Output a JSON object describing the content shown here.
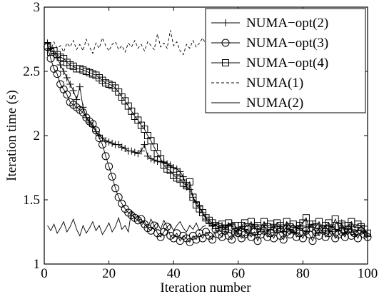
{
  "chart_data": {
    "type": "line",
    "xlabel": "Iteration number",
    "ylabel": "Iteration time (s)",
    "xlim": [
      0,
      100
    ],
    "ylim": [
      1,
      3
    ],
    "xticks": [
      "0",
      "20",
      "40",
      "60",
      "80",
      "100"
    ],
    "yticks": [
      "1",
      "1.5",
      "2",
      "2.5",
      "3"
    ],
    "grid": false,
    "legend_position": "top-right",
    "series": [
      {
        "name": "NUMA−opt(2)",
        "style": "solid",
        "marker": "plus",
        "x": [
          1,
          2,
          3,
          4,
          5,
          6,
          7,
          8,
          9,
          10,
          11,
          12,
          13,
          14,
          15,
          16,
          17,
          18,
          19,
          20,
          21,
          22,
          23,
          24,
          25,
          26,
          27,
          28,
          29,
          30,
          31,
          32,
          33,
          34,
          35,
          36,
          37,
          38,
          39,
          40,
          41,
          42,
          43,
          44,
          45,
          46,
          47,
          48,
          49,
          50,
          51,
          52,
          53,
          54,
          55,
          56,
          57,
          58,
          59,
          60,
          61,
          62,
          63,
          64,
          65,
          66,
          67,
          68,
          69,
          70,
          71,
          72,
          73,
          74,
          75,
          76,
          77,
          78,
          79,
          80,
          81,
          82,
          83,
          84,
          85,
          86,
          87,
          88,
          89,
          90,
          91,
          92,
          93,
          94,
          95,
          96,
          97,
          98,
          99,
          100
        ],
        "y": [
          2.72,
          2.68,
          2.64,
          2.61,
          2.55,
          2.5,
          2.45,
          2.4,
          2.35,
          2.28,
          2.38,
          2.22,
          2.14,
          2.1,
          2.07,
          2.03,
          2.0,
          1.98,
          1.96,
          1.95,
          1.94,
          1.93,
          1.93,
          1.91,
          1.9,
          1.88,
          1.88,
          1.87,
          1.86,
          1.88,
          1.93,
          1.84,
          1.82,
          1.81,
          1.8,
          1.8,
          1.79,
          1.78,
          1.77,
          1.75,
          1.74,
          1.72,
          1.68,
          1.6,
          1.58,
          1.52,
          1.48,
          1.45,
          1.4,
          1.35,
          1.32,
          1.3,
          1.31,
          1.28,
          1.3,
          1.27,
          1.3,
          1.31,
          1.25,
          1.26,
          1.29,
          1.27,
          1.22,
          1.28,
          1.31,
          1.23,
          1.27,
          1.3,
          1.25,
          1.27,
          1.31,
          1.26,
          1.29,
          1.25,
          1.3,
          1.27,
          1.24,
          1.28,
          1.3,
          1.26,
          1.25,
          1.29,
          1.31,
          1.24,
          1.28,
          1.26,
          1.3,
          1.25,
          1.29,
          1.27,
          1.26,
          1.32,
          1.24,
          1.27,
          1.29,
          1.23,
          1.26,
          1.3,
          1.25,
          1.22
        ]
      },
      {
        "name": "NUMA−opt(3)",
        "style": "solid",
        "marker": "circle",
        "x": [
          1,
          2,
          3,
          4,
          5,
          6,
          7,
          8,
          9,
          10,
          11,
          12,
          13,
          14,
          15,
          16,
          17,
          18,
          19,
          20,
          21,
          22,
          23,
          24,
          25,
          26,
          27,
          28,
          29,
          30,
          31,
          32,
          33,
          34,
          35,
          36,
          37,
          38,
          39,
          40,
          41,
          42,
          43,
          44,
          45,
          46,
          47,
          48,
          49,
          50,
          51,
          52,
          53,
          54,
          55,
          56,
          57,
          58,
          59,
          60,
          61,
          62,
          63,
          64,
          65,
          66,
          67,
          68,
          69,
          70,
          71,
          72,
          73,
          74,
          75,
          76,
          77,
          78,
          79,
          80,
          81,
          82,
          83,
          84,
          85,
          86,
          87,
          88,
          89,
          90,
          91,
          92,
          93,
          94,
          95,
          96,
          97,
          98,
          99,
          100
        ],
        "y": [
          2.69,
          2.6,
          2.52,
          2.48,
          2.4,
          2.36,
          2.32,
          2.26,
          2.24,
          2.22,
          2.2,
          2.18,
          2.14,
          2.11,
          2.09,
          2.04,
          1.98,
          1.93,
          1.84,
          1.76,
          1.68,
          1.59,
          1.52,
          1.47,
          1.43,
          1.4,
          1.38,
          1.36,
          1.34,
          1.35,
          1.31,
          1.28,
          1.26,
          1.3,
          1.24,
          1.21,
          1.25,
          1.29,
          1.22,
          1.2,
          1.24,
          1.18,
          1.22,
          1.2,
          1.17,
          1.22,
          1.19,
          1.24,
          1.2,
          1.25,
          1.22,
          1.19,
          1.27,
          1.23,
          1.21,
          1.26,
          1.22,
          1.19,
          1.25,
          1.24,
          1.2,
          1.23,
          1.27,
          1.21,
          1.25,
          1.18,
          1.23,
          1.26,
          1.21,
          1.24,
          1.2,
          1.27,
          1.22,
          1.19,
          1.25,
          1.23,
          1.27,
          1.21,
          1.24,
          1.2,
          1.26,
          1.23,
          1.18,
          1.25,
          1.22,
          1.27,
          1.21,
          1.24,
          1.26,
          1.2,
          1.23,
          1.25,
          1.21,
          1.27,
          1.22,
          1.24,
          1.2,
          1.26,
          1.23,
          1.21
        ]
      },
      {
        "name": "NUMA−opt(4)",
        "style": "solid",
        "marker": "square",
        "x": [
          1,
          2,
          3,
          4,
          5,
          6,
          7,
          8,
          9,
          10,
          11,
          12,
          13,
          14,
          15,
          16,
          17,
          18,
          19,
          20,
          21,
          22,
          23,
          24,
          25,
          26,
          27,
          28,
          29,
          30,
          31,
          32,
          33,
          34,
          35,
          36,
          37,
          38,
          39,
          40,
          41,
          42,
          43,
          44,
          45,
          46,
          47,
          48,
          49,
          50,
          51,
          52,
          53,
          54,
          55,
          56,
          57,
          58,
          59,
          60,
          61,
          62,
          63,
          64,
          65,
          66,
          67,
          68,
          69,
          70,
          71,
          72,
          73,
          74,
          75,
          76,
          77,
          78,
          79,
          80,
          81,
          82,
          83,
          84,
          85,
          86,
          87,
          88,
          89,
          90,
          91,
          92,
          93,
          94,
          95,
          96,
          97,
          98,
          99,
          100
        ],
        "y": [
          2.7,
          2.65,
          2.66,
          2.63,
          2.61,
          2.6,
          2.57,
          2.55,
          2.54,
          2.52,
          2.52,
          2.51,
          2.5,
          2.49,
          2.48,
          2.47,
          2.45,
          2.43,
          2.41,
          2.4,
          2.39,
          2.37,
          2.34,
          2.3,
          2.27,
          2.23,
          2.19,
          2.15,
          2.12,
          2.08,
          2.05,
          2.0,
          1.96,
          1.91,
          1.86,
          1.82,
          1.77,
          1.74,
          1.73,
          1.69,
          1.67,
          1.66,
          1.63,
          1.61,
          1.64,
          1.52,
          1.46,
          1.43,
          1.4,
          1.36,
          1.34,
          1.32,
          1.3,
          1.29,
          1.31,
          1.28,
          1.32,
          1.29,
          1.3,
          1.26,
          1.3,
          1.32,
          1.29,
          1.33,
          1.27,
          1.3,
          1.28,
          1.33,
          1.29,
          1.31,
          1.27,
          1.32,
          1.3,
          1.28,
          1.33,
          1.29,
          1.31,
          1.27,
          1.3,
          1.32,
          1.36,
          1.28,
          1.31,
          1.29,
          1.33,
          1.27,
          1.3,
          1.32,
          1.28,
          1.35,
          1.29,
          1.31,
          1.27,
          1.3,
          1.33,
          1.28,
          1.31,
          1.29,
          1.27,
          1.24
        ]
      },
      {
        "name": "NUMA(1)",
        "style": "dashed",
        "marker": "none",
        "x": [
          1,
          2,
          3,
          4,
          5,
          6,
          7,
          8,
          9,
          10,
          11,
          12,
          13,
          14,
          15,
          16,
          17,
          18,
          19,
          20,
          21,
          22,
          23,
          24,
          25,
          26,
          27,
          28,
          29,
          30,
          31,
          32,
          33,
          34,
          35,
          36,
          37,
          38,
          39,
          40,
          41,
          42,
          43,
          44,
          45,
          46,
          47,
          48,
          49,
          50
        ],
        "y": [
          2.7,
          2.66,
          2.73,
          2.68,
          2.7,
          2.65,
          2.72,
          2.69,
          2.74,
          2.67,
          2.71,
          2.66,
          2.75,
          2.69,
          2.64,
          2.72,
          2.68,
          2.76,
          2.7,
          2.66,
          2.71,
          2.73,
          2.67,
          2.7,
          2.65,
          2.72,
          2.69,
          2.74,
          2.68,
          2.71,
          2.66,
          2.73,
          2.7,
          2.67,
          2.79,
          2.69,
          2.72,
          2.68,
          2.82,
          2.7,
          2.73,
          2.66,
          2.63,
          2.71,
          2.68,
          2.74,
          2.69,
          2.72,
          2.76,
          2.71
        ]
      },
      {
        "name": "NUMA(2)",
        "style": "solid",
        "marker": "none",
        "x": [
          1,
          2,
          3,
          4,
          5,
          6,
          7,
          8,
          9,
          10,
          11,
          12,
          13,
          14,
          15,
          16,
          17,
          18,
          19,
          20,
          21,
          22,
          23,
          24,
          25,
          26,
          27,
          28,
          29,
          30,
          31,
          32,
          33,
          34,
          35,
          36,
          37,
          38,
          39,
          40,
          41,
          42,
          43,
          44,
          45,
          46,
          47,
          48,
          49,
          50
        ],
        "y": [
          1.3,
          1.26,
          1.31,
          1.24,
          1.28,
          1.33,
          1.25,
          1.29,
          1.35,
          1.27,
          1.22,
          1.3,
          1.24,
          1.28,
          1.33,
          1.26,
          1.3,
          1.23,
          1.27,
          1.32,
          1.25,
          1.29,
          1.36,
          1.27,
          1.3,
          1.25,
          1.42,
          1.35,
          1.38,
          1.3,
          1.33,
          1.28,
          1.35,
          1.3,
          1.32,
          1.27,
          1.34,
          1.29,
          1.31,
          1.26,
          1.3,
          1.33,
          1.28,
          1.25,
          1.3,
          1.27,
          1.32,
          1.26,
          1.29,
          1.3
        ]
      }
    ]
  }
}
